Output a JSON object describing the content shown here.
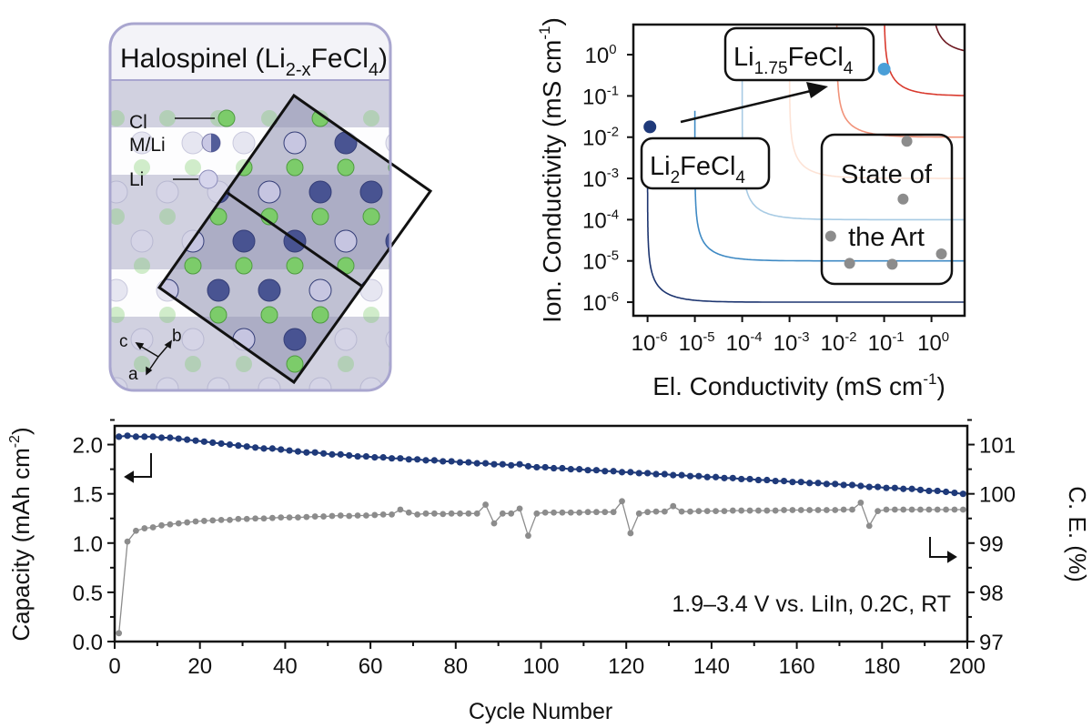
{
  "structure_panel": {
    "title_parts": [
      "Halospinel (Li",
      "2-x",
      "FeCl",
      "4",
      ")"
    ],
    "legend": [
      "Cl",
      "M/Li",
      "Li"
    ],
    "axes": [
      "c",
      "b",
      "a"
    ],
    "colors": {
      "cl": "#7ccc6a",
      "m_li": "#3d4a8c",
      "li": "#c9c8e4",
      "frame": "#a9a6cf"
    }
  },
  "chart_data": [
    {
      "type": "line",
      "title": "",
      "xlabel_parts": [
        "El. Conductivity (mS cm",
        "-1",
        ")"
      ],
      "ylabel_parts": [
        "Ion. Conductivity (mS cm",
        "-1",
        ")"
      ],
      "scale": "log10",
      "xlim_exp": [
        -6.3,
        0.7
      ],
      "ylim_exp": [
        -6.33,
        0.73
      ],
      "x_ticks": [
        {
          "base": "10",
          "exp": "-6"
        },
        {
          "base": "10",
          "exp": "-5"
        },
        {
          "base": "10",
          "exp": "-4"
        },
        {
          "base": "10",
          "exp": "-3"
        },
        {
          "base": "10",
          "exp": "-2"
        },
        {
          "base": "10",
          "exp": "-1"
        },
        {
          "base": "10",
          "exp": "0"
        }
      ],
      "y_ticks": [
        {
          "base": "10",
          "exp": "0"
        },
        {
          "base": "10",
          "exp": "-1"
        },
        {
          "base": "10",
          "exp": "-2"
        },
        {
          "base": "10",
          "exp": "-3"
        },
        {
          "base": "10",
          "exp": "-4"
        },
        {
          "base": "10",
          "exp": "-5"
        },
        {
          "base": "10",
          "exp": "-6"
        }
      ],
      "contours": [
        {
          "level_exp": -6,
          "color": "#1d3570"
        },
        {
          "level_exp": -5,
          "color": "#3f8ac4"
        },
        {
          "level_exp": -4,
          "color": "#a8cbe4"
        },
        {
          "level_exp": -3,
          "color": "#fde3d6"
        },
        {
          "level_exp": -2,
          "color": "#f1937a"
        },
        {
          "level_exp": -1,
          "color": "#d93a2e"
        },
        {
          "level_exp": 0,
          "color": "#6e1a22"
        }
      ],
      "points": [
        {
          "name": "Li2FeCl4",
          "label_parts": [
            "Li",
            "2",
            "FeCl",
            "4"
          ],
          "x_exp": -5.95,
          "y_exp": -1.75,
          "color": "#1f3a7a"
        },
        {
          "name": "Li1.75FeCl4",
          "label_parts": [
            "Li",
            "1.75",
            "FeCl",
            "4"
          ],
          "x_exp": -1.0,
          "y_exp": -0.35,
          "color": "#4a9fd8"
        }
      ],
      "state_of_art": {
        "label_lines": [
          "State of",
          "the Art"
        ],
        "color": "#8c8c8c",
        "points": [
          [
            -0.52,
            -2.1
          ],
          [
            -0.6,
            -3.5
          ],
          [
            -2.13,
            -4.4
          ],
          [
            -1.73,
            -5.06
          ],
          [
            -0.83,
            -5.08
          ],
          [
            0.21,
            -4.83
          ]
        ]
      }
    },
    {
      "type": "line",
      "xlabel": "Cycle Number",
      "ylabel_parts": [
        "Capacity (mAh cm",
        "-2",
        ")"
      ],
      "y2label": "C. E. (%)",
      "xlim": [
        0,
        200
      ],
      "ylim": [
        0,
        2.19
      ],
      "y2lim": [
        97,
        101.38
      ],
      "x_ticks": [
        "0",
        "20",
        "40",
        "60",
        "80",
        "100",
        "120",
        "140",
        "160",
        "180",
        "200"
      ],
      "y_ticks": [
        "0.0",
        "0.5",
        "1.0",
        "1.5",
        "2.0"
      ],
      "y2_ticks": [
        "97",
        "98",
        "99",
        "100",
        "101"
      ],
      "annotation": "1.9–3.4 V vs. LiIn, 0.2C, RT",
      "x_start": 1,
      "x_step": 2,
      "series": [
        {
          "name": "Capacity",
          "axis": "left",
          "color": "#1f3a7a",
          "values": [
            2.08,
            2.09,
            2.08,
            2.08,
            2.08,
            2.07,
            2.07,
            2.06,
            2.05,
            2.04,
            2.03,
            2.02,
            2.01,
            2.0,
            1.99,
            1.98,
            1.97,
            1.96,
            1.96,
            1.95,
            1.94,
            1.93,
            1.92,
            1.92,
            1.91,
            1.9,
            1.9,
            1.89,
            1.88,
            1.88,
            1.87,
            1.87,
            1.86,
            1.86,
            1.85,
            1.85,
            1.84,
            1.84,
            1.83,
            1.83,
            1.82,
            1.82,
            1.81,
            1.81,
            1.8,
            1.8,
            1.79,
            1.8,
            1.78,
            1.77,
            1.77,
            1.76,
            1.76,
            1.75,
            1.75,
            1.74,
            1.74,
            1.73,
            1.73,
            1.72,
            1.72,
            1.71,
            1.71,
            1.7,
            1.7,
            1.69,
            1.69,
            1.68,
            1.68,
            1.67,
            1.67,
            1.66,
            1.66,
            1.65,
            1.65,
            1.64,
            1.64,
            1.63,
            1.63,
            1.62,
            1.62,
            1.61,
            1.61,
            1.6,
            1.6,
            1.59,
            1.59,
            1.58,
            1.57,
            1.57,
            1.56,
            1.56,
            1.55,
            1.55,
            1.54,
            1.53,
            1.53,
            1.52,
            1.51,
            1.5
          ]
        },
        {
          "name": "Coulombic Efficiency",
          "axis": "right",
          "color": "#8c8c8c",
          "values": [
            97.17,
            99.03,
            99.25,
            99.3,
            99.32,
            99.36,
            99.38,
            99.4,
            99.42,
            99.44,
            99.45,
            99.46,
            99.47,
            99.47,
            99.49,
            99.49,
            99.5,
            99.5,
            99.51,
            99.52,
            99.52,
            99.52,
            99.53,
            99.54,
            99.54,
            99.55,
            99.56,
            99.55,
            99.56,
            99.56,
            99.57,
            99.58,
            99.58,
            99.68,
            99.62,
            99.58,
            99.6,
            99.6,
            99.59,
            99.6,
            99.6,
            99.6,
            99.6,
            99.78,
            99.4,
            99.6,
            99.6,
            99.7,
            99.15,
            99.6,
            99.62,
            99.62,
            99.62,
            99.62,
            99.62,
            99.63,
            99.63,
            99.63,
            99.63,
            99.85,
            99.2,
            99.6,
            99.63,
            99.64,
            99.64,
            99.75,
            99.64,
            99.64,
            99.65,
            99.65,
            99.65,
            99.65,
            99.66,
            99.66,
            99.66,
            99.66,
            99.66,
            99.66,
            99.67,
            99.67,
            99.67,
            99.67,
            99.67,
            99.67,
            99.67,
            99.68,
            99.68,
            99.82,
            99.35,
            99.65,
            99.68,
            99.68,
            99.68,
            99.68,
            99.68,
            99.68,
            99.68,
            99.68,
            99.68,
            99.68
          ]
        }
      ]
    }
  ]
}
